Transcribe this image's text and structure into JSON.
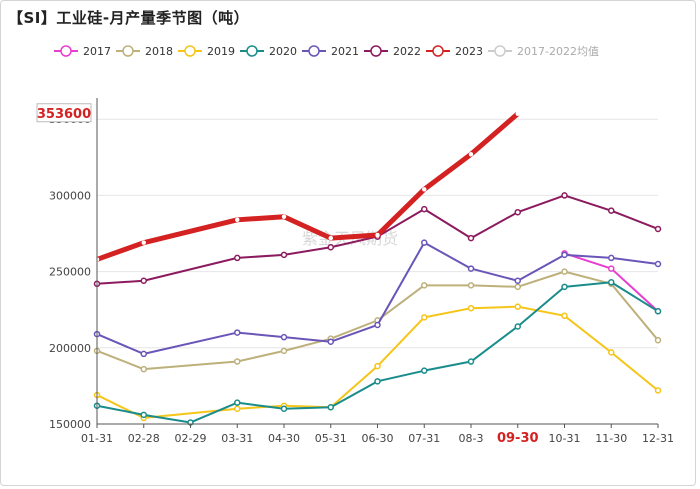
{
  "title": "【SI】工业硅-月产量季节图（吨）",
  "watermark": "紫金天风期货",
  "chart_data": {
    "type": "line",
    "title": "【SI】工业硅-月产量季节图（吨）",
    "categories": [
      "01-31",
      "02-28",
      "02-29",
      "03-31",
      "04-30",
      "05-31",
      "06-30",
      "07-31",
      "08-3",
      "09-30",
      "10-31",
      "11-30",
      "12-31"
    ],
    "ylim": [
      150000,
      360000
    ],
    "yticks": [
      "150000",
      "200000",
      "250000",
      "300000",
      "350000"
    ],
    "highlight_category": "09-30",
    "latest_value_label": "353600",
    "series": [
      {
        "name": "2017",
        "color": "#e83ed0",
        "values": [
          null,
          null,
          null,
          null,
          null,
          null,
          null,
          null,
          null,
          null,
          262000,
          252000,
          224000
        ]
      },
      {
        "name": "2018",
        "color": "#bdb07b",
        "values": [
          198000,
          186000,
          null,
          191000,
          198000,
          206000,
          218000,
          241000,
          241000,
          240000,
          250000,
          242000,
          205000
        ]
      },
      {
        "name": "2019",
        "color": "#f5c518",
        "values": [
          169000,
          154000,
          null,
          160000,
          162000,
          161000,
          188000,
          220000,
          226000,
          227000,
          221000,
          197000,
          172000
        ]
      },
      {
        "name": "2020",
        "color": "#1a8c8c",
        "values": [
          162000,
          156000,
          151000,
          164000,
          160000,
          161000,
          178000,
          185000,
          191000,
          214000,
          240000,
          243000,
          224000
        ]
      },
      {
        "name": "2021",
        "color": "#6a55b8",
        "values": [
          209000,
          196000,
          null,
          210000,
          207000,
          204000,
          215000,
          269000,
          252000,
          244000,
          261000,
          259000,
          255000
        ]
      },
      {
        "name": "2022",
        "color": "#8c1a5e",
        "values": [
          242000,
          244000,
          null,
          259000,
          261000,
          266000,
          273000,
          291000,
          272000,
          289000,
          300000,
          290000,
          278000
        ]
      },
      {
        "name": "2023",
        "color": "#d42222",
        "values": [
          258000,
          269000,
          null,
          284000,
          286000,
          272000,
          274000,
          304000,
          327000,
          353600,
          null,
          null,
          null
        ]
      },
      {
        "name": "2017-2022均值",
        "color": "#cccccc",
        "values": [
          null,
          null,
          null,
          null,
          null,
          null,
          null,
          null,
          null,
          null,
          null,
          null,
          null
        ]
      }
    ]
  }
}
